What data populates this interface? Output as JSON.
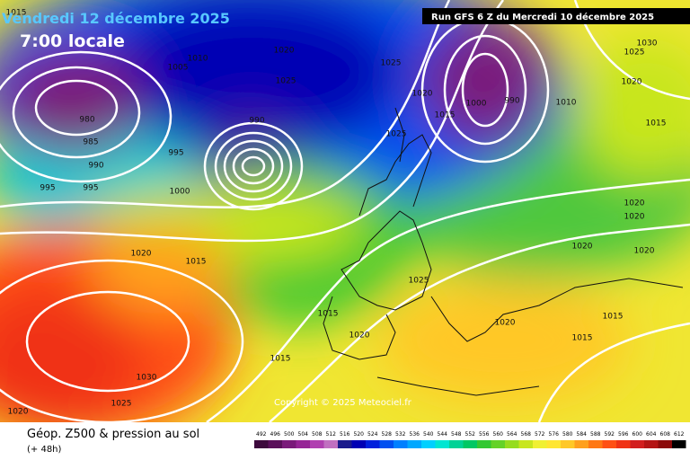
{
  "header": {
    "date": "Vendredi 12 décembre 2025",
    "time": "7:00 locale",
    "run": "Run GFS 6 Z du Mercredi 10 décembre 2025"
  },
  "map": {
    "copyright": "Copyright © 2025 Meteociel.fr",
    "isobar_labels": [
      1015,
      980,
      985,
      990,
      995,
      995,
      1000,
      1005,
      1010,
      995,
      990,
      1020,
      1025,
      1025,
      1025,
      1020,
      1015,
      1000,
      990,
      1010,
      1030,
      1025,
      1020,
      1015,
      1020,
      1020,
      1020,
      1020,
      1020,
      1015,
      1025,
      1015,
      1020,
      1020,
      1015,
      1015,
      1015,
      1030,
      1025,
      1020
    ]
  },
  "footer": {
    "title": "Géop. Z500 & pression au sol",
    "lead": "(+ 48h)"
  },
  "legend": {
    "values": [
      492,
      496,
      500,
      504,
      508,
      512,
      516,
      520,
      524,
      528,
      532,
      536,
      540,
      544,
      548,
      552,
      556,
      560,
      564,
      568,
      572,
      576,
      580,
      584,
      588,
      592,
      596,
      600,
      604,
      608,
      612
    ],
    "colors": [
      "#3d0a3d",
      "#5a0f5a",
      "#7a1a7a",
      "#962596",
      "#b040b0",
      "#c070c0",
      "#1a1a8c",
      "#0000b4",
      "#0020dc",
      "#0050f0",
      "#0080ff",
      "#00a8ff",
      "#00d0ff",
      "#00e6d2",
      "#00d296",
      "#00c864",
      "#32c832",
      "#64d228",
      "#96dc1e",
      "#c8e61e",
      "#f0f032",
      "#ffe632",
      "#ffc828",
      "#ffa01e",
      "#ff7814",
      "#ff5014",
      "#f03214",
      "#d21e1e",
      "#b41414",
      "#8c0a0a",
      "#000000"
    ]
  }
}
